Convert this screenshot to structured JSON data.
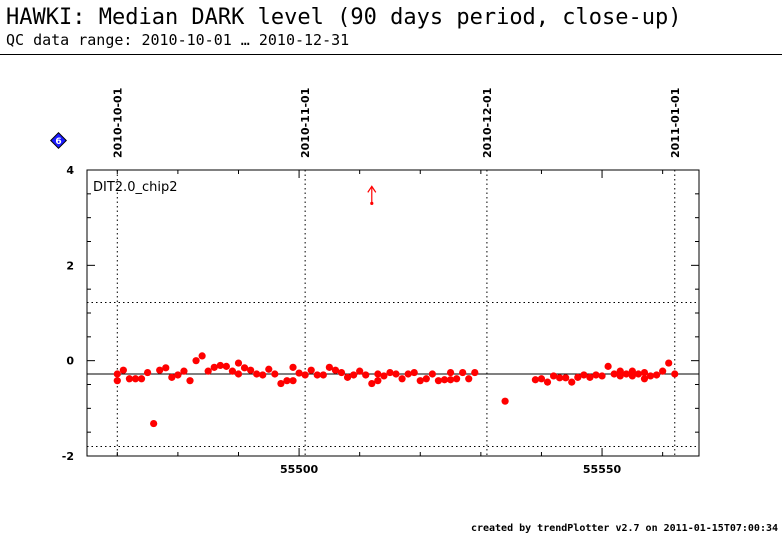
{
  "header": {
    "title": "HAWKI: Median DARK level (90 days period, close-up)",
    "subtitle": "QC data range: 2010-10-01 … 2010-12-31"
  },
  "footer": {
    "text": "created by trendPlotter v2.7 on 2011-01-15T07:00:34"
  },
  "badge": {
    "label": "6",
    "icon": "blue-diamond-icon"
  },
  "chart_data": {
    "type": "scatter",
    "panel_label": "DIT2.0_chip2",
    "xlim": [
      55465,
      55566
    ],
    "ylim": [
      -2,
      4
    ],
    "xticks": [
      55500,
      55550
    ],
    "yticks": [
      4,
      2,
      0,
      -2
    ],
    "date_marks": [
      {
        "label": "2010-10-01",
        "x": 55470
      },
      {
        "label": "2010-11-01",
        "x": 55501
      },
      {
        "label": "2010-12-01",
        "x": 55531
      },
      {
        "label": "2011-01-01",
        "x": 55562
      }
    ],
    "reference_lines": {
      "median": -0.28,
      "upper": 1.22,
      "lower": -1.8
    },
    "colors": {
      "points": "#ff0000",
      "median": "#000000",
      "limits": "#000000"
    },
    "outlier_arrow": {
      "x": 55512,
      "y": 3.3
    },
    "series": [
      {
        "points": [
          [
            55470,
            -0.28
          ],
          [
            55470,
            -0.42
          ],
          [
            55471,
            -0.2
          ],
          [
            55472,
            -0.38
          ],
          [
            55473,
            -0.38
          ],
          [
            55474,
            -0.38
          ],
          [
            55475,
            -0.25
          ],
          [
            55476,
            -1.32
          ],
          [
            55477,
            -0.2
          ],
          [
            55478,
            -0.15
          ],
          [
            55479,
            -0.35
          ],
          [
            55480,
            -0.3
          ],
          [
            55481,
            -0.22
          ],
          [
            55482,
            -0.42
          ],
          [
            55483,
            0.0
          ],
          [
            55484,
            0.1
          ],
          [
            55485,
            -0.22
          ],
          [
            55486,
            -0.14
          ],
          [
            55487,
            -0.1
          ],
          [
            55488,
            -0.12
          ],
          [
            55489,
            -0.22
          ],
          [
            55490,
            -0.28
          ],
          [
            55490,
            -0.05
          ],
          [
            55491,
            -0.15
          ],
          [
            55492,
            -0.2
          ],
          [
            55493,
            -0.28
          ],
          [
            55494,
            -0.3
          ],
          [
            55495,
            -0.18
          ],
          [
            55496,
            -0.28
          ],
          [
            55497,
            -0.48
          ],
          [
            55498,
            -0.42
          ],
          [
            55499,
            -0.42
          ],
          [
            55499,
            -0.14
          ],
          [
            55500,
            -0.26
          ],
          [
            55501,
            -0.3
          ],
          [
            55502,
            -0.2
          ],
          [
            55503,
            -0.3
          ],
          [
            55504,
            -0.3
          ],
          [
            55505,
            -0.14
          ],
          [
            55506,
            -0.2
          ],
          [
            55507,
            -0.25
          ],
          [
            55508,
            -0.35
          ],
          [
            55509,
            -0.3
          ],
          [
            55510,
            -0.22
          ],
          [
            55511,
            -0.3
          ],
          [
            55512,
            -0.48
          ],
          [
            55513,
            -0.42
          ],
          [
            55513,
            -0.28
          ],
          [
            55514,
            -0.32
          ],
          [
            55515,
            -0.25
          ],
          [
            55516,
            -0.28
          ],
          [
            55517,
            -0.38
          ],
          [
            55518,
            -0.28
          ],
          [
            55519,
            -0.25
          ],
          [
            55520,
            -0.42
          ],
          [
            55521,
            -0.38
          ],
          [
            55522,
            -0.28
          ],
          [
            55523,
            -0.42
          ],
          [
            55524,
            -0.4
          ],
          [
            55525,
            -0.25
          ],
          [
            55525,
            -0.4
          ],
          [
            55526,
            -0.38
          ],
          [
            55527,
            -0.25
          ],
          [
            55528,
            -0.38
          ],
          [
            55529,
            -0.25
          ],
          [
            55534,
            -0.85
          ],
          [
            55539,
            -0.4
          ],
          [
            55540,
            -0.38
          ],
          [
            55541,
            -0.45
          ],
          [
            55542,
            -0.32
          ],
          [
            55543,
            -0.36
          ],
          [
            55544,
            -0.36
          ],
          [
            55545,
            -0.45
          ],
          [
            55546,
            -0.35
          ],
          [
            55547,
            -0.3
          ],
          [
            55548,
            -0.35
          ],
          [
            55549,
            -0.3
          ],
          [
            55550,
            -0.32
          ],
          [
            55551,
            -0.12
          ],
          [
            55552,
            -0.28
          ],
          [
            55553,
            -0.32
          ],
          [
            55553,
            -0.22
          ],
          [
            55554,
            -0.28
          ],
          [
            55555,
            -0.22
          ],
          [
            55555,
            -0.32
          ],
          [
            55556,
            -0.28
          ],
          [
            55557,
            -0.38
          ],
          [
            55557,
            -0.25
          ],
          [
            55558,
            -0.32
          ],
          [
            55559,
            -0.3
          ],
          [
            55560,
            -0.22
          ],
          [
            55561,
            -0.05
          ],
          [
            55562,
            -0.28
          ]
        ]
      }
    ]
  }
}
